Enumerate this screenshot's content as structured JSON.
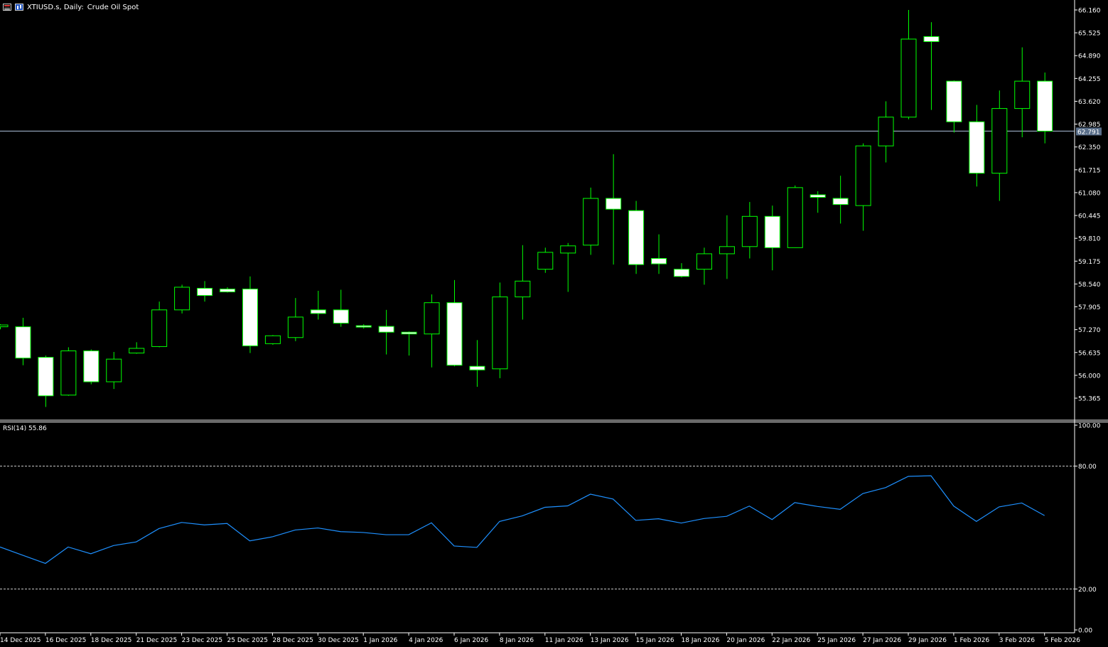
{
  "header": {
    "symbol_label": "XTIUSD.s, Daily:",
    "description": "Crude Oil Spot"
  },
  "icons": [
    "symbol-flag-icon",
    "chart-bars-icon"
  ],
  "colors": {
    "background": "#000000",
    "candle_outline": "#00ff00",
    "candle_bear_fill": "#ffffff",
    "current_price_line": "#b0c4de",
    "rsi_line": "#1e90ff",
    "rsi_levels": "#cccccc",
    "axis_text": "#ffffff"
  },
  "chart_data": [
    {
      "type": "candlestick",
      "title": "XTIUSD.s, Daily: Crude Oil Spot",
      "price_ticks": [
        "66.160",
        "65.525",
        "64.890",
        "64.255",
        "63.620",
        "62.985",
        "62.350",
        "61.715",
        "61.080",
        "60.445",
        "59.810",
        "59.175",
        "58.540",
        "57.905",
        "57.270",
        "56.635",
        "56.000",
        "55.365"
      ],
      "ylim": [
        55.0,
        66.36
      ],
      "current_price": "62.791",
      "date_labels": [
        "14 Dec 2025",
        "16 Dec 2025",
        "18 Dec 2025",
        "21 Dec 2025",
        "23 Dec 2025",
        "25 Dec 2025",
        "28 Dec 2025",
        "30 Dec 2025",
        "1 Jan 2026",
        "4 Jan 2026",
        "6 Jan 2026",
        "8 Jan 2026",
        "11 Jan 2026",
        "13 Jan 2026",
        "15 Jan 2026",
        "18 Jan 2026",
        "20 Jan 2026",
        "22 Jan 2026",
        "25 Jan 2026",
        "27 Jan 2026",
        "29 Jan 2026",
        "1 Feb 2026",
        "3 Feb 2026",
        "5 Feb 2026"
      ],
      "candles": [
        {
          "o": 57.35,
          "h": 57.42,
          "l": 57.28,
          "c": 57.4
        },
        {
          "o": 57.35,
          "h": 57.6,
          "l": 56.28,
          "c": 56.48
        },
        {
          "o": 56.5,
          "h": 56.55,
          "l": 55.12,
          "c": 55.43
        },
        {
          "o": 55.45,
          "h": 56.78,
          "l": 55.43,
          "c": 56.68
        },
        {
          "o": 56.68,
          "h": 56.72,
          "l": 55.75,
          "c": 55.82
        },
        {
          "o": 55.82,
          "h": 56.65,
          "l": 55.62,
          "c": 56.45
        },
        {
          "o": 56.62,
          "h": 56.92,
          "l": 56.6,
          "c": 56.75
        },
        {
          "o": 56.8,
          "h": 58.05,
          "l": 56.78,
          "c": 57.82
        },
        {
          "o": 57.82,
          "h": 58.52,
          "l": 57.72,
          "c": 58.45
        },
        {
          "o": 58.42,
          "h": 58.62,
          "l": 58.05,
          "c": 58.22
        },
        {
          "o": 58.4,
          "h": 58.45,
          "l": 58.3,
          "c": 58.32
        },
        {
          "o": 58.4,
          "h": 58.75,
          "l": 56.62,
          "c": 56.82
        },
        {
          "o": 56.88,
          "h": 57.12,
          "l": 56.85,
          "c": 57.1
        },
        {
          "o": 57.05,
          "h": 58.15,
          "l": 56.95,
          "c": 57.62
        },
        {
          "o": 57.82,
          "h": 58.35,
          "l": 57.55,
          "c": 57.72
        },
        {
          "o": 57.82,
          "h": 58.38,
          "l": 57.35,
          "c": 57.45
        },
        {
          "o": 57.38,
          "h": 57.42,
          "l": 57.3,
          "c": 57.34
        },
        {
          "o": 57.36,
          "h": 57.82,
          "l": 56.58,
          "c": 57.2
        },
        {
          "o": 57.2,
          "h": 57.22,
          "l": 56.55,
          "c": 57.15
        },
        {
          "o": 57.15,
          "h": 58.25,
          "l": 56.22,
          "c": 58.02
        },
        {
          "o": 58.02,
          "h": 58.65,
          "l": 56.25,
          "c": 56.28
        },
        {
          "o": 56.25,
          "h": 56.98,
          "l": 55.68,
          "c": 56.15
        },
        {
          "o": 56.18,
          "h": 58.58,
          "l": 55.92,
          "c": 58.18
        },
        {
          "o": 58.18,
          "h": 59.62,
          "l": 57.55,
          "c": 58.62
        },
        {
          "o": 58.95,
          "h": 59.55,
          "l": 58.85,
          "c": 59.42
        },
        {
          "o": 59.4,
          "h": 59.68,
          "l": 58.32,
          "c": 59.6
        },
        {
          "o": 59.62,
          "h": 61.22,
          "l": 59.35,
          "c": 60.92
        },
        {
          "o": 60.92,
          "h": 62.15,
          "l": 59.08,
          "c": 60.62
        },
        {
          "o": 60.58,
          "h": 60.85,
          "l": 58.82,
          "c": 59.08
        },
        {
          "o": 59.25,
          "h": 59.92,
          "l": 58.82,
          "c": 59.1
        },
        {
          "o": 58.95,
          "h": 59.12,
          "l": 58.72,
          "c": 58.75
        },
        {
          "o": 58.95,
          "h": 59.55,
          "l": 58.52,
          "c": 59.38
        },
        {
          "o": 59.38,
          "h": 60.45,
          "l": 58.68,
          "c": 59.58
        },
        {
          "o": 59.58,
          "h": 60.82,
          "l": 59.25,
          "c": 60.42
        },
        {
          "o": 60.42,
          "h": 60.72,
          "l": 58.92,
          "c": 59.55
        },
        {
          "o": 59.55,
          "h": 61.28,
          "l": 59.55,
          "c": 61.22
        },
        {
          "o": 61.02,
          "h": 61.12,
          "l": 60.52,
          "c": 60.95
        },
        {
          "o": 60.92,
          "h": 61.55,
          "l": 60.22,
          "c": 60.75
        },
        {
          "o": 60.72,
          "h": 62.45,
          "l": 60.02,
          "c": 62.38
        },
        {
          "o": 62.38,
          "h": 63.62,
          "l": 61.92,
          "c": 63.18
        },
        {
          "o": 63.18,
          "h": 66.16,
          "l": 63.12,
          "c": 65.35
        },
        {
          "o": 65.42,
          "h": 65.82,
          "l": 63.38,
          "c": 65.28
        },
        {
          "o": 64.18,
          "h": 64.2,
          "l": 62.75,
          "c": 63.05
        },
        {
          "o": 63.05,
          "h": 63.52,
          "l": 61.25,
          "c": 61.62
        },
        {
          "o": 61.62,
          "h": 63.92,
          "l": 60.85,
          "c": 63.42
        },
        {
          "o": 63.42,
          "h": 65.12,
          "l": 62.62,
          "c": 64.18
        },
        {
          "o": 64.18,
          "h": 64.42,
          "l": 62.45,
          "c": 62.79
        }
      ]
    },
    {
      "type": "line",
      "title": "RSI(14) 55.86",
      "series": [
        {
          "name": "RSI(14)",
          "values": [
            40.5,
            36.5,
            32.5,
            40.5,
            37.2,
            41.2,
            43.0,
            49.5,
            52.5,
            51.3,
            52.0,
            43.5,
            45.5,
            48.8,
            49.8,
            48.0,
            47.6,
            46.5,
            46.5,
            52.3,
            41.0,
            40.3,
            53.0,
            55.7,
            59.9,
            60.6,
            66.3,
            63.9,
            53.5,
            54.3,
            52.2,
            54.4,
            55.5,
            60.5,
            53.9,
            62.2,
            60.3,
            58.9,
            66.6,
            69.5,
            75.0,
            75.3,
            60.5,
            53.0,
            60.1,
            62.0,
            55.86
          ]
        }
      ],
      "levels": [
        80,
        20
      ],
      "ticks": [
        "100.00",
        "80.00",
        "20.00",
        "0.00"
      ],
      "ylim": [
        0,
        100
      ]
    }
  ]
}
